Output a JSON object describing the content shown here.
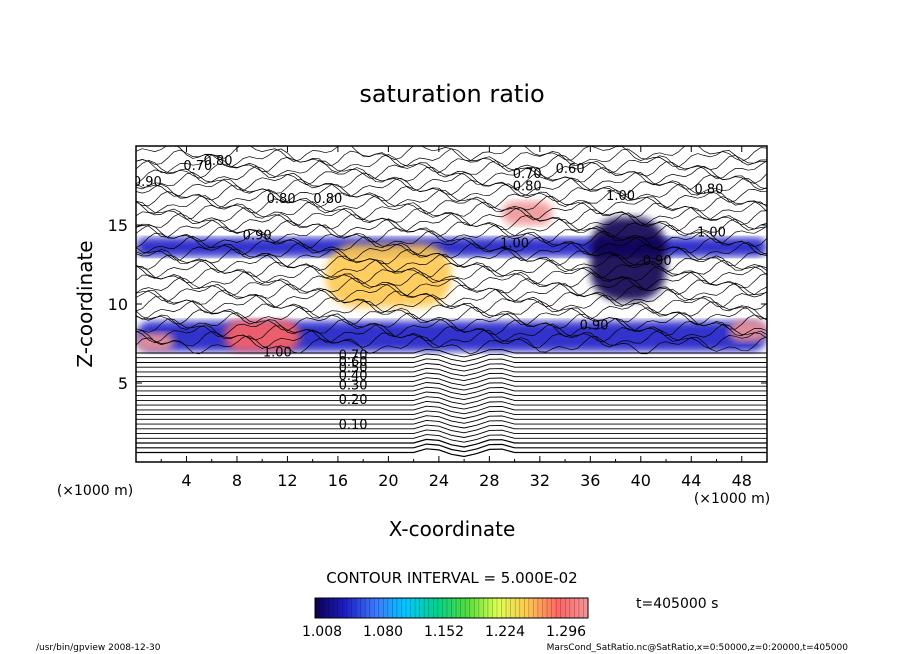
{
  "chart_data": {
    "type": "heatmap",
    "title": "saturation ratio",
    "xlabel": "X-coordinate",
    "ylabel": "Z-coordinate",
    "x_unit_label": "(×1000 m)",
    "y_unit_label": "(×1000 m)",
    "xlim": [
      0,
      50
    ],
    "ylim": [
      0,
      20
    ],
    "x_ticks": [
      4,
      8,
      12,
      16,
      20,
      24,
      28,
      32,
      36,
      40,
      44,
      48
    ],
    "y_ticks": [
      5,
      10,
      15
    ],
    "contour_interval_text": "CONTOUR INTERVAL = 5.000E-02",
    "time_text": "t=405000 s",
    "colorbar": {
      "min": 1.008,
      "max": 1.332,
      "tick_labels": [
        "1.008",
        "1.080",
        "1.152",
        "1.224",
        "1.296"
      ],
      "colors": [
        "#0a0050",
        "#1e1ec8",
        "#3c78ff",
        "#00c8ff",
        "#00d28c",
        "#50dc3c",
        "#dcff50",
        "#ffc850",
        "#ff6464",
        "#f09696"
      ]
    },
    "contour_labels": [
      {
        "text": "0.10",
        "x": 17.2,
        "z": 2.4
      },
      {
        "text": "0.20",
        "x": 17.2,
        "z": 4.0
      },
      {
        "text": "0.30",
        "x": 17.2,
        "z": 4.9
      },
      {
        "text": "0.40",
        "x": 17.2,
        "z": 5.5
      },
      {
        "text": "0.50",
        "x": 17.2,
        "z": 6.0
      },
      {
        "text": "0.60",
        "x": 17.2,
        "z": 6.4
      },
      {
        "text": "0.70",
        "x": 17.2,
        "z": 6.8
      },
      {
        "text": "1.00",
        "x": 11.2,
        "z": 7.0
      },
      {
        "text": "0.70",
        "x": 4.9,
        "z": 18.8
      },
      {
        "text": "0.80",
        "x": 6.5,
        "z": 19.1
      },
      {
        "text": "0.70",
        "x": 31.0,
        "z": 18.3
      },
      {
        "text": "0.60",
        "x": 34.4,
        "z": 18.6
      },
      {
        "text": "0.80",
        "x": 31.0,
        "z": 17.5
      },
      {
        "text": "0.80",
        "x": 45.4,
        "z": 17.3
      },
      {
        "text": "0.80",
        "x": 11.5,
        "z": 16.7
      },
      {
        "text": "0.80",
        "x": 15.2,
        "z": 16.7
      },
      {
        "text": "1.00",
        "x": 38.4,
        "z": 16.9
      },
      {
        "text": "0.90",
        "x": 9.6,
        "z": 14.4
      },
      {
        "text": "1.00",
        "x": 30.0,
        "z": 13.9
      },
      {
        "text": "1.00",
        "x": 45.6,
        "z": 14.6
      },
      {
        "text": "0.90",
        "x": 41.3,
        "z": 12.8
      },
      {
        "text": "0.90",
        "x": 36.3,
        "z": 8.7
      },
      {
        "text": "0.90",
        "x": 0.9,
        "z": 17.8
      }
    ],
    "regions": [
      {
        "x": [
          0,
          50
        ],
        "z": [
          7.0,
          8.9
        ],
        "level": 1.07
      },
      {
        "x": [
          0,
          3
        ],
        "z": [
          7.0,
          8.2
        ],
        "level": 1.31
      },
      {
        "x": [
          7,
          13
        ],
        "z": [
          7.0,
          9.0
        ],
        "level": 1.29
      },
      {
        "x": [
          0,
          50
        ],
        "z": [
          13.0,
          14.2
        ],
        "level": 1.06
      },
      {
        "x": [
          15,
          25
        ],
        "z": [
          9.8,
          13.8
        ],
        "level": 1.25
      },
      {
        "x": [
          29,
          33
        ],
        "z": [
          15.0,
          16.5
        ],
        "level": 1.3
      },
      {
        "x": [
          47,
          50
        ],
        "z": [
          7.6,
          9.0
        ],
        "level": 1.3
      },
      {
        "x": [
          36,
          42
        ],
        "z": [
          10.2,
          15.5
        ],
        "level": 1.009
      }
    ]
  },
  "footer": {
    "left_text": "/usr/bin/gpview   2008-12-30",
    "right_text": "MarsCond_SatRatio.nc@SatRatio,x=0:50000,z=0:20000,t=405000"
  }
}
